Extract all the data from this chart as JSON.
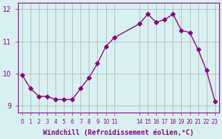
{
  "x": [
    0,
    1,
    2,
    3,
    4,
    5,
    6,
    7,
    8,
    9,
    10,
    11,
    14,
    15,
    16,
    17,
    18,
    19,
    20,
    21,
    22,
    23
  ],
  "y": [
    9.97,
    9.55,
    9.3,
    9.3,
    9.2,
    9.2,
    9.2,
    9.55,
    9.88,
    10.32,
    10.85,
    11.12,
    11.55,
    11.85,
    11.6,
    11.68,
    11.85,
    11.35,
    11.28,
    10.75,
    10.1,
    9.15
  ],
  "line_color": "#880088",
  "marker": "D",
  "marker_size": 3,
  "bg_color": "#d8f0f0",
  "grid_color": "#aaaaaa",
  "xlabel": "Windchill (Refroidissement éolien,°C)",
  "ylabel": "",
  "title": "",
  "xlim": [
    -0.5,
    23.5
  ],
  "ylim": [
    8.8,
    12.2
  ],
  "yticks": [
    9,
    10,
    11,
    12
  ],
  "xticks": [
    0,
    1,
    2,
    3,
    4,
    5,
    6,
    7,
    8,
    9,
    10,
    11,
    14,
    15,
    16,
    17,
    18,
    19,
    20,
    21,
    22,
    23
  ],
  "xtick_fontsize": 5.5,
  "ytick_fontsize": 7,
  "xlabel_fontsize": 7,
  "label_color": "#880088",
  "tick_color": "#880088"
}
